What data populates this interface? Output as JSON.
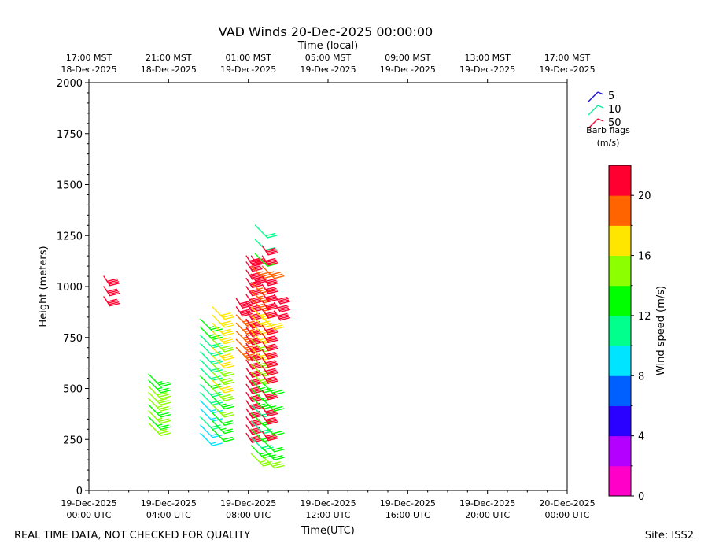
{
  "chart_data": {
    "type": "wind_barbs",
    "title": "VAD Winds 20-Dec-2025 00:00:00",
    "top_axis_label": "Time (local)",
    "xlabel": "Time(UTC)",
    "ylabel": "Height (meters)",
    "ylim": [
      0,
      2000
    ],
    "xlim_hours": [
      0,
      24
    ],
    "y_ticks": [
      0,
      250,
      500,
      750,
      1000,
      1250,
      1500,
      1750,
      2000
    ],
    "x_ticks": [
      {
        "hour": 0,
        "line1": "19-Dec-2025",
        "line2": "00:00 UTC"
      },
      {
        "hour": 4,
        "line1": "19-Dec-2025",
        "line2": "04:00 UTC"
      },
      {
        "hour": 8,
        "line1": "19-Dec-2025",
        "line2": "08:00 UTC"
      },
      {
        "hour": 12,
        "line1": "19-Dec-2025",
        "line2": "12:00 UTC"
      },
      {
        "hour": 16,
        "line1": "19-Dec-2025",
        "line2": "16:00 UTC"
      },
      {
        "hour": 20,
        "line1": "19-Dec-2025",
        "line2": "20:00 UTC"
      },
      {
        "hour": 24,
        "line1": "20-Dec-2025",
        "line2": "00:00 UTC"
      }
    ],
    "top_ticks": [
      {
        "hour": 0,
        "line1": "17:00 MST",
        "line2": "18-Dec-2025"
      },
      {
        "hour": 4,
        "line1": "21:00 MST",
        "line2": "18-Dec-2025"
      },
      {
        "hour": 8,
        "line1": "01:00 MST",
        "line2": "19-Dec-2025"
      },
      {
        "hour": 12,
        "line1": "05:00 MST",
        "line2": "19-Dec-2025"
      },
      {
        "hour": 16,
        "line1": "09:00 MST",
        "line2": "19-Dec-2025"
      },
      {
        "hour": 20,
        "line1": "13:00 MST",
        "line2": "19-Dec-2025"
      },
      {
        "hour": 24,
        "line1": "17:00 MST",
        "line2": "19-Dec-2025"
      }
    ],
    "barb_legend": {
      "items": [
        {
          "value": "5",
          "color": "#1a10d8"
        },
        {
          "value": "10",
          "color": "#12e89a"
        },
        {
          "value": "50",
          "color": "#ff0030"
        }
      ],
      "title_line1": "Barb flags",
      "title_line2": "(m/s)"
    },
    "colorbar": {
      "label": "Wind speed (m/s)",
      "range": [
        0,
        22
      ],
      "ticks": [
        0,
        4,
        8,
        12,
        16,
        20
      ],
      "colors": [
        "#ff00c8",
        "#b400ff",
        "#2a00ff",
        "#0060ff",
        "#00e4ff",
        "#00ff8c",
        "#00ff00",
        "#8cff00",
        "#ffe600",
        "#ff6400",
        "#ff0030"
      ]
    },
    "profiles": [
      {
        "hour": 0.75,
        "levels": [
          {
            "h": 950,
            "speed": 21
          },
          {
            "h": 1000,
            "speed": 21
          },
          {
            "h": 1050,
            "speed": 21
          }
        ]
      },
      {
        "hour": 3.0,
        "levels": [
          {
            "h": 330,
            "speed": 15
          },
          {
            "h": 360,
            "speed": 13.5
          },
          {
            "h": 390,
            "speed": 14
          },
          {
            "h": 420,
            "speed": 13
          },
          {
            "h": 450,
            "speed": 14.5
          },
          {
            "h": 480,
            "speed": 15
          },
          {
            "h": 510,
            "speed": 15.5
          },
          {
            "h": 540,
            "speed": 13.5
          },
          {
            "h": 570,
            "speed": 13
          }
        ]
      },
      {
        "hour": 5.6,
        "levels": [
          {
            "h": 280,
            "speed": 9
          },
          {
            "h": 320,
            "speed": 9.5
          },
          {
            "h": 360,
            "speed": 10
          },
          {
            "h": 400,
            "speed": 9
          },
          {
            "h": 440,
            "speed": 9.5
          },
          {
            "h": 480,
            "speed": 10
          },
          {
            "h": 520,
            "speed": 11
          },
          {
            "h": 560,
            "speed": 12
          },
          {
            "h": 600,
            "speed": 11
          },
          {
            "h": 640,
            "speed": 10
          },
          {
            "h": 680,
            "speed": 11
          },
          {
            "h": 720,
            "speed": 11.5
          },
          {
            "h": 760,
            "speed": 10.5
          },
          {
            "h": 800,
            "speed": 12.5
          },
          {
            "h": 840,
            "speed": 13.5
          }
        ]
      },
      {
        "hour": 6.2,
        "levels": [
          {
            "h": 300,
            "speed": 12
          },
          {
            "h": 340,
            "speed": 13
          },
          {
            "h": 380,
            "speed": 12
          },
          {
            "h": 420,
            "speed": 14
          },
          {
            "h": 460,
            "speed": 13
          },
          {
            "h": 500,
            "speed": 15
          },
          {
            "h": 540,
            "speed": 16
          },
          {
            "h": 580,
            "speed": 15
          },
          {
            "h": 620,
            "speed": 14
          },
          {
            "h": 660,
            "speed": 16
          },
          {
            "h": 700,
            "speed": 17
          },
          {
            "h": 740,
            "speed": 15
          },
          {
            "h": 780,
            "speed": 16
          },
          {
            "h": 820,
            "speed": 17
          },
          {
            "h": 860,
            "speed": 16
          },
          {
            "h": 900,
            "speed": 17
          }
        ]
      },
      {
        "hour": 7.4,
        "levels": [
          {
            "h": 700,
            "speed": 18.5
          },
          {
            "h": 740,
            "speed": 19
          },
          {
            "h": 780,
            "speed": 19
          },
          {
            "h": 820,
            "speed": 18.5
          },
          {
            "h": 860,
            "speed": 19
          },
          {
            "h": 900,
            "speed": 20
          },
          {
            "h": 940,
            "speed": 21
          }
        ]
      },
      {
        "hour": 7.9,
        "levels": [
          {
            "h": 280,
            "speed": 21
          },
          {
            "h": 320,
            "speed": 21
          },
          {
            "h": 360,
            "speed": 20.5
          },
          {
            "h": 400,
            "speed": 21
          },
          {
            "h": 440,
            "speed": 21
          },
          {
            "h": 480,
            "speed": 21
          },
          {
            "h": 520,
            "speed": 20
          },
          {
            "h": 560,
            "speed": 21
          },
          {
            "h": 600,
            "speed": 21
          },
          {
            "h": 640,
            "speed": 20.5
          },
          {
            "h": 680,
            "speed": 21
          },
          {
            "h": 720,
            "speed": 21
          },
          {
            "h": 760,
            "speed": 21
          },
          {
            "h": 800,
            "speed": 20
          },
          {
            "h": 840,
            "speed": 21
          },
          {
            "h": 880,
            "speed": 21
          },
          {
            "h": 920,
            "speed": 20
          },
          {
            "h": 960,
            "speed": 21
          },
          {
            "h": 1000,
            "speed": 21
          },
          {
            "h": 1040,
            "speed": 21
          },
          {
            "h": 1080,
            "speed": 20
          },
          {
            "h": 1120,
            "speed": 21
          },
          {
            "h": 1150,
            "speed": 21
          }
        ]
      },
      {
        "hour": 8.15,
        "levels": [
          {
            "h": 180,
            "speed": 14
          },
          {
            "h": 220,
            "speed": 13
          },
          {
            "h": 260,
            "speed": 11
          },
          {
            "h": 300,
            "speed": 12
          },
          {
            "h": 340,
            "speed": 11
          },
          {
            "h": 380,
            "speed": 12
          },
          {
            "h": 420,
            "speed": 11
          },
          {
            "h": 460,
            "speed": 13
          },
          {
            "h": 500,
            "speed": 12
          },
          {
            "h": 540,
            "speed": 13
          },
          {
            "h": 580,
            "speed": 14
          },
          {
            "h": 620,
            "speed": 15
          },
          {
            "h": 660,
            "speed": 14
          },
          {
            "h": 700,
            "speed": 16
          },
          {
            "h": 740,
            "speed": 15
          },
          {
            "h": 780,
            "speed": 16
          },
          {
            "h": 820,
            "speed": 17
          },
          {
            "h": 860,
            "speed": 16
          },
          {
            "h": 900,
            "speed": 17
          },
          {
            "h": 940,
            "speed": 18
          },
          {
            "h": 980,
            "speed": 19
          },
          {
            "h": 1020,
            "speed": 19
          },
          {
            "h": 1060,
            "speed": 20
          },
          {
            "h": 1100,
            "speed": 19
          },
          {
            "h": 1150,
            "speed": 20
          }
        ]
      },
      {
        "hour": 8.35,
        "levels": [
          {
            "h": 1160,
            "speed": 12
          },
          {
            "h": 1230,
            "speed": 11
          },
          {
            "h": 1300,
            "speed": 11
          }
        ]
      },
      {
        "hour": 8.7,
        "levels": [
          {
            "h": 170,
            "speed": 15
          },
          {
            "h": 210,
            "speed": 13
          },
          {
            "h": 250,
            "speed": 12
          },
          {
            "h": 290,
            "speed": 21
          },
          {
            "h": 330,
            "speed": 12
          },
          {
            "h": 370,
            "speed": 21
          },
          {
            "h": 410,
            "speed": 21
          },
          {
            "h": 450,
            "speed": 13
          },
          {
            "h": 490,
            "speed": 21
          },
          {
            "h": 530,
            "speed": 13
          },
          {
            "h": 570,
            "speed": 21
          },
          {
            "h": 610,
            "speed": 21
          },
          {
            "h": 650,
            "speed": 21
          },
          {
            "h": 690,
            "speed": 20
          },
          {
            "h": 730,
            "speed": 21
          },
          {
            "h": 770,
            "speed": 21
          },
          {
            "h": 810,
            "speed": 21
          },
          {
            "h": 850,
            "speed": 16
          },
          {
            "h": 890,
            "speed": 21
          },
          {
            "h": 930,
            "speed": 21
          },
          {
            "h": 970,
            "speed": 21
          },
          {
            "h": 1010,
            "speed": 21
          },
          {
            "h": 1050,
            "speed": 21
          },
          {
            "h": 1100,
            "speed": 18
          },
          {
            "h": 1150,
            "speed": 21
          },
          {
            "h": 1200,
            "speed": 21
          }
        ]
      },
      {
        "hour": 9.3,
        "levels": [
          {
            "h": 880,
            "speed": 21
          },
          {
            "h": 920,
            "speed": 21
          },
          {
            "h": 960,
            "speed": 21
          }
        ]
      }
    ]
  },
  "footer": {
    "left": "REAL TIME DATA, NOT CHECKED FOR QUALITY",
    "right": "Site: ISS2"
  }
}
